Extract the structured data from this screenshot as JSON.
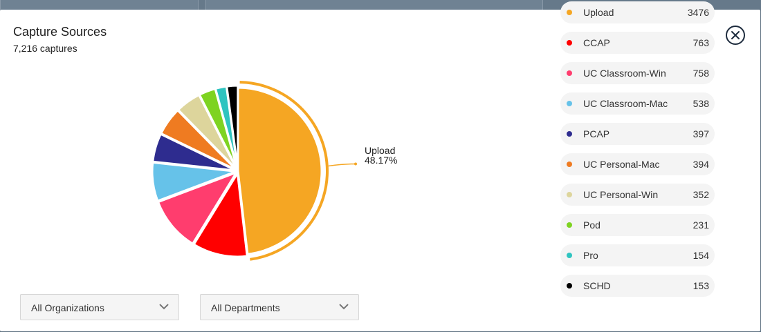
{
  "header": {
    "title": "Capture Sources",
    "subtitle": "7,216 captures"
  },
  "callout": {
    "label": "Upload",
    "percent": "48.17%"
  },
  "filters": {
    "organizations": "All Organizations",
    "departments": "All Departments"
  },
  "icons": {
    "close": "close-icon",
    "chevron": "chevron-down-icon"
  },
  "colors": {
    "highlight_ring": "#F5A623"
  },
  "chart_data": {
    "type": "pie",
    "total": 7216,
    "highlighted": "Upload",
    "slices": [
      {
        "name": "Upload",
        "value": 3476,
        "color": "#F5A623"
      },
      {
        "name": "CCAP",
        "value": 763,
        "color": "#FF0000"
      },
      {
        "name": "UC Classroom-Win",
        "value": 758,
        "color": "#FF3D6E"
      },
      {
        "name": "UC Classroom-Mac",
        "value": 538,
        "color": "#66C2E9"
      },
      {
        "name": "PCAP",
        "value": 397,
        "color": "#2E2C8F"
      },
      {
        "name": "UC Personal-Mac",
        "value": 394,
        "color": "#EF7B21"
      },
      {
        "name": "UC Personal-Win",
        "value": 352,
        "color": "#DDD59C"
      },
      {
        "name": "Pod",
        "value": 231,
        "color": "#7ED321"
      },
      {
        "name": "Pro",
        "value": 154,
        "color": "#2EC4C0"
      },
      {
        "name": "SCHD",
        "value": 153,
        "color": "#000000"
      }
    ]
  }
}
